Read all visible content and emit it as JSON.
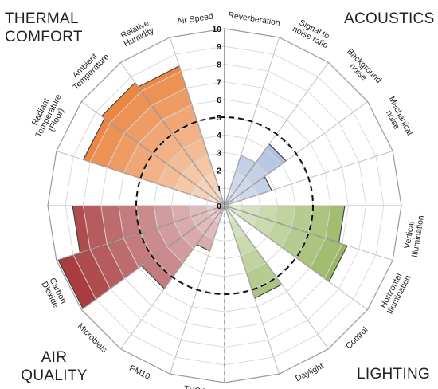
{
  "chart_data": {
    "type": "polar-bar",
    "scale": {
      "min": 0,
      "max": 10,
      "ticks": [
        0,
        1,
        2,
        3,
        4,
        5,
        6,
        7,
        8,
        9,
        10
      ]
    },
    "reference_level": 5,
    "grid": true,
    "groups": [
      {
        "name": "THERMAL COMFORT",
        "color": "#e8772a",
        "position": "top-left"
      },
      {
        "name": "ACOUSTICS",
        "color": "#6f8fc4",
        "position": "top-right"
      },
      {
        "name": "LIGHTING",
        "color": "#7fa43a",
        "position": "bottom-right"
      },
      {
        "name": "AIR QUALITY",
        "color": "#a43437",
        "position": "bottom-left"
      }
    ],
    "categories": [
      {
        "label": "Reverberation",
        "group": "ACOUSTICS",
        "value": 0
      },
      {
        "label": "Signal to noise ratio",
        "group": "ACOUSTICS",
        "value": 3
      },
      {
        "label": "Background noise",
        "group": "ACOUSTICS",
        "value": 4.3
      },
      {
        "label": "Mechanical noise",
        "group": "ACOUSTICS",
        "value": 2.8
      },
      {
        "label": "",
        "group": "ACOUSTICS",
        "value": 0
      },
      {
        "label": "Vertical Illumination",
        "group": "LIGHTING",
        "value": 6.8
      },
      {
        "label": "Horizontal Illumination",
        "group": "LIGHTING",
        "value": 7.3
      },
      {
        "label": "Control",
        "group": "LIGHTING",
        "value": 0
      },
      {
        "label": "Daylight",
        "group": "LIGHTING",
        "value": 5.5
      },
      {
        "label": "",
        "group": "LIGHTING",
        "value": 0
      },
      {
        "label": "TVOC",
        "group": "AIR QUALITY",
        "value": 0
      },
      {
        "label": "PM10",
        "group": "AIR QUALITY",
        "value": 2.7
      },
      {
        "label": "Microbials",
        "group": "AIR QUALITY",
        "value": 5.8
      },
      {
        "label": "Carbon Dioxide",
        "group": "AIR QUALITY",
        "value": 9.9
      },
      {
        "label": "",
        "group": "AIR QUALITY",
        "value": 8.6
      },
      {
        "label": "",
        "group": "THERMAL COMFORT",
        "value": 0
      },
      {
        "label": "Radiant Temperature (Floor)",
        "group": "THERMAL COMFORT",
        "value": 8.4
      },
      {
        "label": "Ambient Temperature",
        "group": "THERMAL COMFORT",
        "value": 8.6
      },
      {
        "label": "Relative Humidity",
        "group": "THERMAL COMFORT",
        "value": 8.3
      },
      {
        "label": "Air Speed",
        "group": "THERMAL COMFORT",
        "value": 0
      }
    ]
  }
}
